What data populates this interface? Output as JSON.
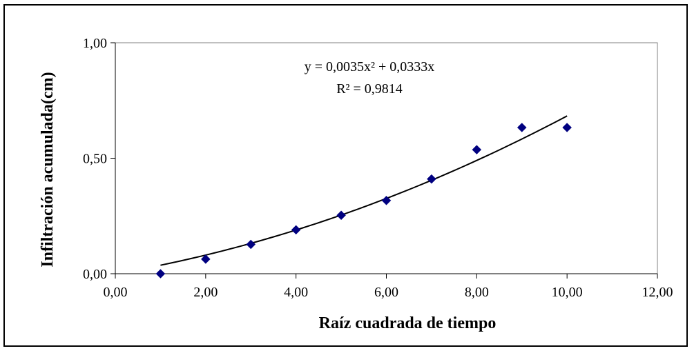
{
  "chart_data": {
    "type": "scatter",
    "title": "",
    "xlabel": "Raíz cuadrada de tiempo",
    "ylabel": "Infiltración acumulada(cm)",
    "xlim": [
      0,
      12
    ],
    "ylim": [
      0,
      1
    ],
    "x_ticks": [
      "0,00",
      "2,00",
      "4,00",
      "6,00",
      "8,00",
      "10,00",
      "12,00"
    ],
    "y_ticks": [
      "0,00",
      "0,50",
      "1,00"
    ],
    "grid": false,
    "legend": "none",
    "marker_color": "#000080",
    "series": [
      {
        "marker": "diamond",
        "x": [
          1,
          2,
          3,
          4,
          5,
          6,
          7,
          8,
          9,
          10
        ],
        "y": [
          0.0,
          0.063,
          0.127,
          0.19,
          0.253,
          0.317,
          0.41,
          0.537,
          0.633,
          0.633
        ]
      }
    ],
    "trendline": {
      "type": "polynomial",
      "a": 0.0035,
      "b": 0.0333,
      "x_range": [
        1,
        10
      ],
      "equation": "y = 0,0035x² + 0,0333x",
      "r_squared": "R² = 0,9814"
    }
  }
}
